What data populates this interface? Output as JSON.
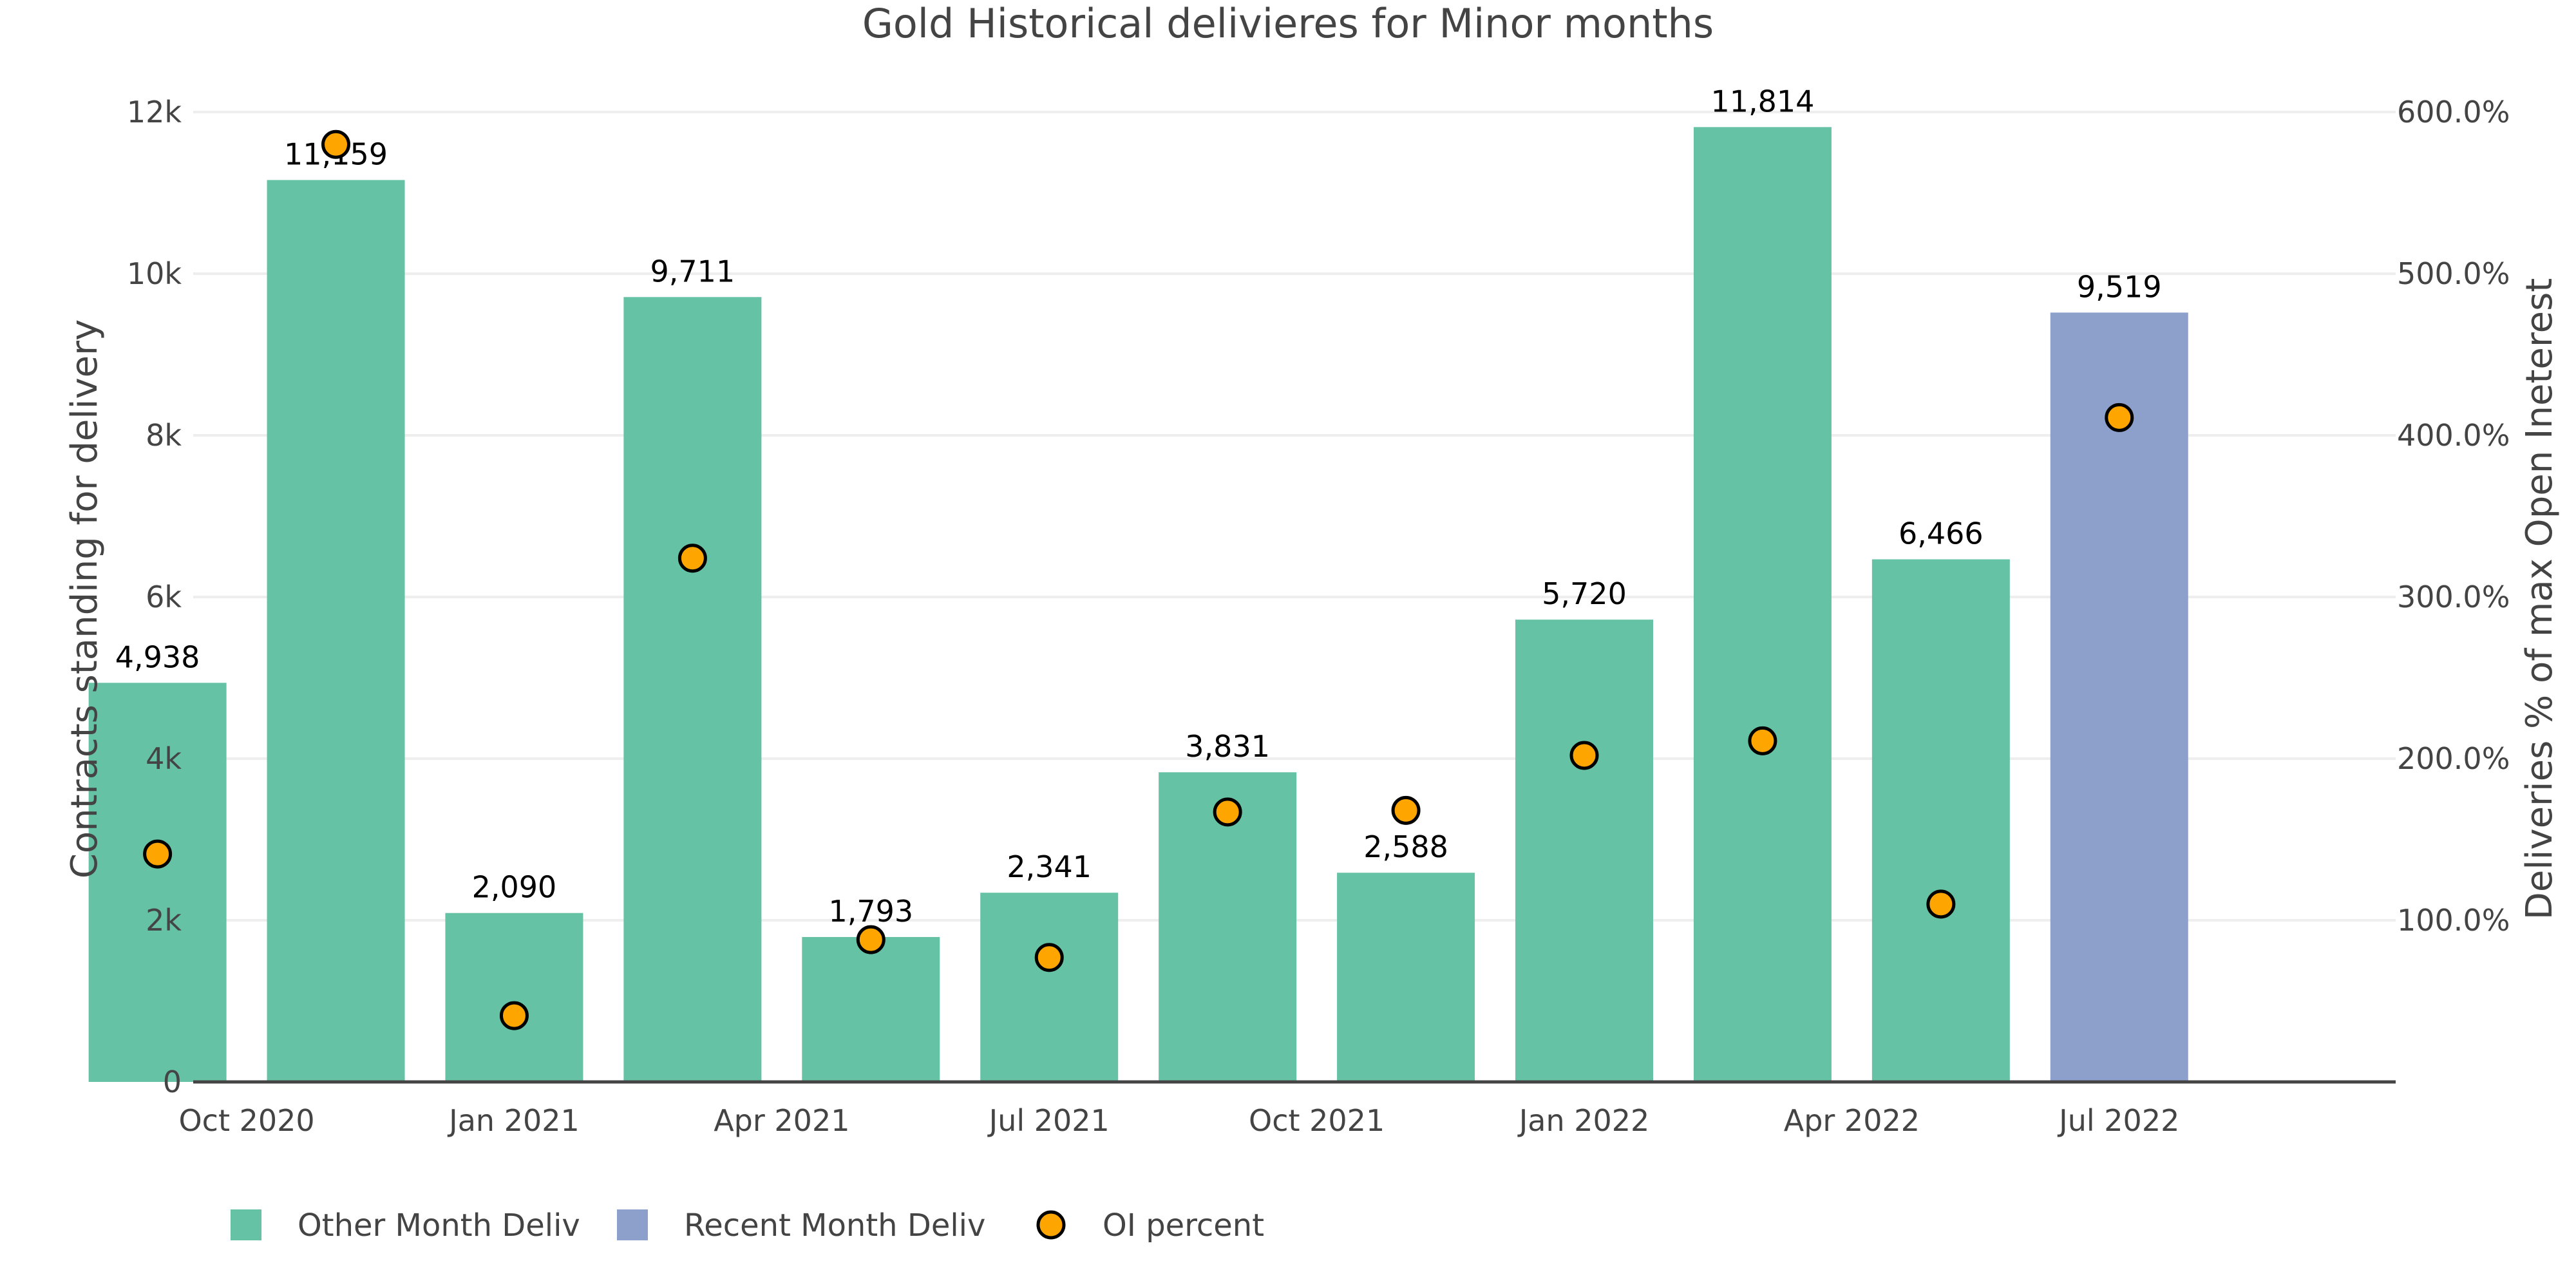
{
  "chart_data": {
    "type": "bar",
    "title": "Gold Historical delivieres for Minor months",
    "xlabel": "",
    "ylabel": "Contracts standing for delivery",
    "y2label": "Deliveries % of max Open Ineterest",
    "ylim": [
      0,
      12000
    ],
    "y2lim": [
      0,
      600
    ],
    "yticks": [
      0,
      2000,
      4000,
      6000,
      8000,
      10000,
      12000
    ],
    "ytick_labels": [
      "0",
      "2k",
      "4k",
      "6k",
      "8k",
      "10k",
      "12k"
    ],
    "y2ticks": [
      100,
      200,
      300,
      400,
      500,
      600
    ],
    "y2tick_labels": [
      "100.0%",
      "200.0%",
      "300.0%",
      "400.0%",
      "500.0%",
      "600.0%"
    ],
    "grid": true,
    "legend_position": "bottom-left",
    "x_month_index_range": [
      0.4,
      25.1
    ],
    "xticks": [
      {
        "month_index": 1,
        "label": "Oct 2020"
      },
      {
        "month_index": 4,
        "label": "Jan 2021"
      },
      {
        "month_index": 7,
        "label": "Apr 2021"
      },
      {
        "month_index": 10,
        "label": "Jul 2021"
      },
      {
        "month_index": 13,
        "label": "Oct 2021"
      },
      {
        "month_index": 16,
        "label": "Jan 2022"
      },
      {
        "month_index": 19,
        "label": "Apr 2022"
      },
      {
        "month_index": 22,
        "label": "Jul 2022"
      }
    ],
    "categories": [
      "2020-09",
      "2020-11",
      "2021-01",
      "2021-03",
      "2021-05",
      "2021-07",
      "2021-09",
      "2021-11",
      "2022-01",
      "2022-03",
      "2022-05",
      "2022-07"
    ],
    "month_index": [
      0,
      2,
      4,
      6,
      8,
      10,
      12,
      14,
      16,
      18,
      20,
      22
    ],
    "series": [
      {
        "name": "Other Month Deliv",
        "kind": "bar",
        "axis": "left",
        "color": "#66c2a5",
        "values": [
          4938,
          11159,
          2090,
          9711,
          1793,
          2341,
          3831,
          2588,
          5720,
          11814,
          6466,
          null
        ],
        "labels": [
          "4,938",
          "11,159",
          "2,090",
          "9,711",
          "1,793",
          "2,341",
          "3,831",
          "2,588",
          "5,720",
          "11,814",
          "6,466",
          null
        ]
      },
      {
        "name": "Recent Month Deliv",
        "kind": "bar",
        "axis": "left",
        "color": "#8da0cb",
        "values": [
          null,
          null,
          null,
          null,
          null,
          null,
          null,
          null,
          null,
          null,
          null,
          9519
        ],
        "labels": [
          null,
          null,
          null,
          null,
          null,
          null,
          null,
          null,
          null,
          null,
          null,
          "9,519"
        ]
      },
      {
        "name": "OI percent",
        "kind": "scatter",
        "axis": "right",
        "color": "#ffa500",
        "values": [
          141,
          580,
          41,
          324,
          88,
          77,
          167,
          168,
          202,
          211,
          110,
          411
        ]
      }
    ]
  }
}
